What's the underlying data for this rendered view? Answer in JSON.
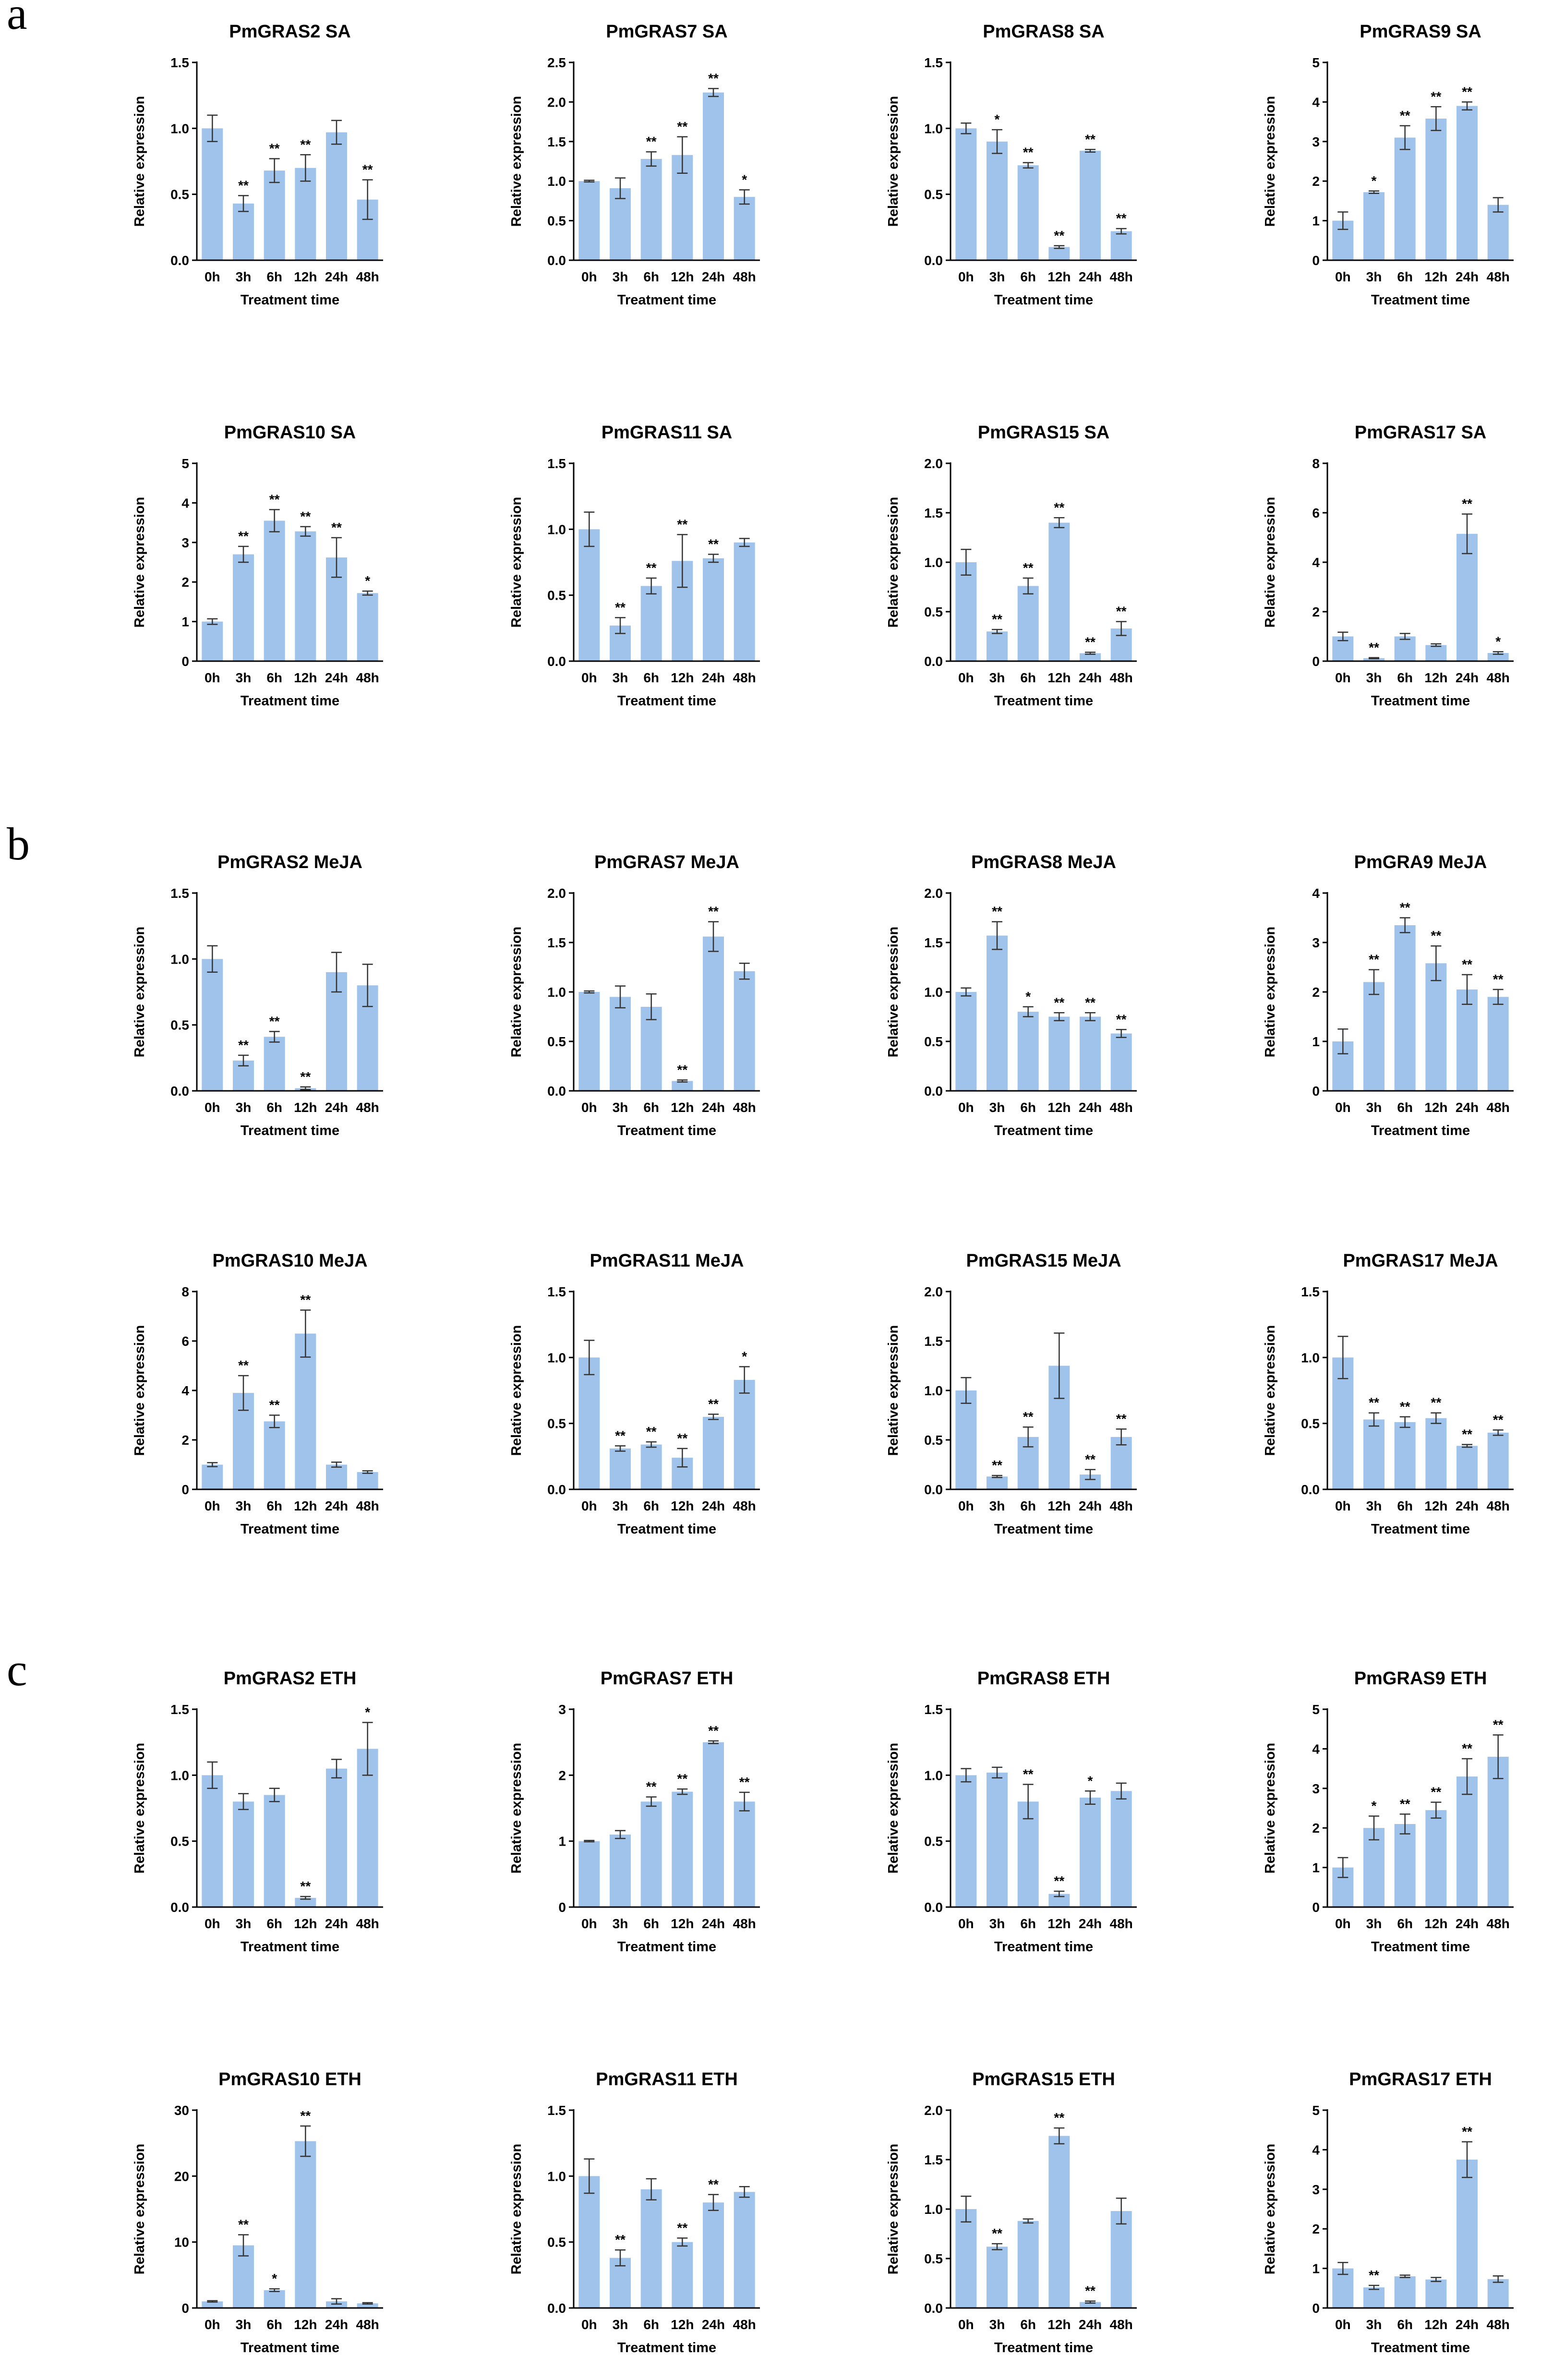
{
  "figure": {
    "panels": [
      {
        "letter": "a",
        "treatment": "SA"
      },
      {
        "letter": "b",
        "treatment": "MeJA"
      },
      {
        "letter": "c",
        "treatment": "ETH"
      }
    ]
  },
  "colors": {
    "bar": "#9fc3ea",
    "axis": "#000000",
    "error": "#333333"
  },
  "chart_data": [
    {
      "type": "bar",
      "title": "PmGRAS2 SA",
      "xlabel": "Treatment time",
      "ylabel": "Relative expression",
      "categories": [
        "0h",
        "3h",
        "6h",
        "12h",
        "24h",
        "48h"
      ],
      "values": [
        1.0,
        0.43,
        0.68,
        0.7,
        0.97,
        0.46
      ],
      "errors": [
        0.1,
        0.06,
        0.09,
        0.1,
        0.09,
        0.15
      ],
      "significance": [
        "",
        "**",
        "**",
        "**",
        "",
        "**"
      ],
      "ylim": [
        0,
        1.5
      ],
      "yticks": [
        "0.0",
        "0.5",
        "1.0",
        "1.5"
      ]
    },
    {
      "type": "bar",
      "title": "PmGRAS7 SA",
      "xlabel": "Treatment time",
      "ylabel": "Relative expression",
      "categories": [
        "0h",
        "3h",
        "6h",
        "12h",
        "24h",
        "48h"
      ],
      "values": [
        1.0,
        0.91,
        1.28,
        1.33,
        2.12,
        0.8
      ],
      "errors": [
        0.01,
        0.13,
        0.09,
        0.23,
        0.05,
        0.09
      ],
      "significance": [
        "",
        "",
        "**",
        "**",
        "**",
        "*"
      ],
      "ylim": [
        0,
        2.5
      ],
      "yticks": [
        "0.0",
        "0.5",
        "1.0",
        "1.5",
        "2.0",
        "2.5"
      ]
    },
    {
      "type": "bar",
      "title": "PmGRAS8 SA",
      "xlabel": "Treatment time",
      "ylabel": "Relative expression",
      "categories": [
        "0h",
        "3h",
        "6h",
        "12h",
        "24h",
        "48h"
      ],
      "values": [
        1.0,
        0.9,
        0.72,
        0.1,
        0.83,
        0.22
      ],
      "errors": [
        0.04,
        0.09,
        0.02,
        0.01,
        0.01,
        0.02
      ],
      "significance": [
        "",
        "*",
        "**",
        "**",
        "**",
        "**"
      ],
      "ylim": [
        0,
        1.5
      ],
      "yticks": [
        "0.0",
        "0.5",
        "1.0",
        "1.5"
      ]
    },
    {
      "type": "bar",
      "title": "PmGRAS9 SA",
      "xlabel": "Treatment time",
      "ylabel": "Relative expression",
      "categories": [
        "0h",
        "3h",
        "6h",
        "12h",
        "24h",
        "48h"
      ],
      "values": [
        1.0,
        1.72,
        3.1,
        3.58,
        3.9,
        1.4
      ],
      "errors": [
        0.22,
        0.03,
        0.3,
        0.3,
        0.1,
        0.18
      ],
      "significance": [
        "",
        "*",
        "**",
        "**",
        "**",
        ""
      ],
      "ylim": [
        0,
        5
      ],
      "yticks": [
        "0",
        "1",
        "2",
        "3",
        "4",
        "5"
      ]
    },
    {
      "type": "bar",
      "title": "PmGRAS10 SA",
      "xlabel": "Treatment time",
      "ylabel": "Relative expression",
      "categories": [
        "0h",
        "3h",
        "6h",
        "12h",
        "24h",
        "48h"
      ],
      "values": [
        1.0,
        2.7,
        3.55,
        3.28,
        2.62,
        1.72
      ],
      "errors": [
        0.07,
        0.2,
        0.28,
        0.12,
        0.5,
        0.05
      ],
      "significance": [
        "",
        "**",
        "**",
        "**",
        "**",
        "*"
      ],
      "ylim": [
        0,
        5
      ],
      "yticks": [
        "0",
        "1",
        "2",
        "3",
        "4",
        "5"
      ]
    },
    {
      "type": "bar",
      "title": "PmGRAS11 SA",
      "xlabel": "Treatment time",
      "ylabel": "Relative expression",
      "categories": [
        "0h",
        "3h",
        "6h",
        "12h",
        "24h",
        "48h"
      ],
      "values": [
        1.0,
        0.27,
        0.57,
        0.76,
        0.78,
        0.9
      ],
      "errors": [
        0.13,
        0.06,
        0.06,
        0.2,
        0.03,
        0.03
      ],
      "significance": [
        "",
        "**",
        "**",
        "**",
        "**",
        ""
      ],
      "ylim": [
        0,
        1.5
      ],
      "yticks": [
        "0.0",
        "0.5",
        "1.0",
        "1.5"
      ]
    },
    {
      "type": "bar",
      "title": "PmGRAS15 SA",
      "xlabel": "Treatment time",
      "ylabel": "Relative expression",
      "categories": [
        "0h",
        "3h",
        "6h",
        "12h",
        "24h",
        "48h"
      ],
      "values": [
        1.0,
        0.3,
        0.76,
        1.4,
        0.08,
        0.33
      ],
      "errors": [
        0.13,
        0.02,
        0.08,
        0.05,
        0.01,
        0.07
      ],
      "significance": [
        "",
        "**",
        "**",
        "**",
        "**",
        "**"
      ],
      "ylim": [
        0,
        2.0
      ],
      "yticks": [
        "0.0",
        "0.5",
        "1.0",
        "1.5",
        "2.0"
      ]
    },
    {
      "type": "bar",
      "title": "PmGRAS17 SA",
      "xlabel": "Treatment time",
      "ylabel": "Relative expression",
      "categories": [
        "0h",
        "3h",
        "6h",
        "12h",
        "24h",
        "48h"
      ],
      "values": [
        1.0,
        0.12,
        1.0,
        0.65,
        5.15,
        0.33
      ],
      "errors": [
        0.17,
        0.02,
        0.12,
        0.05,
        0.8,
        0.05
      ],
      "significance": [
        "",
        "**",
        "",
        "",
        "**",
        "*"
      ],
      "ylim": [
        0,
        8
      ],
      "yticks": [
        "0",
        "2",
        "4",
        "6",
        "8"
      ]
    },
    {
      "type": "bar",
      "title": "PmGRAS2 MeJA",
      "xlabel": "Treatment time",
      "ylabel": "Relative expression",
      "categories": [
        "0h",
        "3h",
        "6h",
        "12h",
        "24h",
        "48h"
      ],
      "values": [
        1.0,
        0.23,
        0.41,
        0.02,
        0.9,
        0.8
      ],
      "errors": [
        0.1,
        0.04,
        0.04,
        0.01,
        0.15,
        0.16
      ],
      "significance": [
        "",
        "**",
        "**",
        "**",
        "",
        ""
      ],
      "ylim": [
        0,
        1.5
      ],
      "yticks": [
        "0.0",
        "0.5",
        "1.0",
        "1.5"
      ]
    },
    {
      "type": "bar",
      "title": "PmGRAS7 MeJA",
      "xlabel": "Treatment time",
      "ylabel": "Relative expression",
      "categories": [
        "0h",
        "3h",
        "6h",
        "12h",
        "24h",
        "48h"
      ],
      "values": [
        1.0,
        0.95,
        0.85,
        0.1,
        1.56,
        1.21
      ],
      "errors": [
        0.01,
        0.11,
        0.13,
        0.01,
        0.15,
        0.08
      ],
      "significance": [
        "",
        "",
        "",
        "**",
        "**",
        ""
      ],
      "ylim": [
        0,
        2.0
      ],
      "yticks": [
        "0.0",
        "0.5",
        "1.0",
        "1.5",
        "2.0"
      ]
    },
    {
      "type": "bar",
      "title": "PmGRAS8 MeJA",
      "xlabel": "Treatment time",
      "ylabel": "Relative expression",
      "categories": [
        "0h",
        "3h",
        "6h",
        "12h",
        "24h",
        "48h"
      ],
      "values": [
        1.0,
        1.57,
        0.8,
        0.75,
        0.75,
        0.58
      ],
      "errors": [
        0.04,
        0.14,
        0.05,
        0.04,
        0.04,
        0.04
      ],
      "significance": [
        "",
        "**",
        "*",
        "**",
        "**",
        "**"
      ],
      "ylim": [
        0,
        2.0
      ],
      "yticks": [
        "0.0",
        "0.5",
        "1.0",
        "1.5",
        "2.0"
      ]
    },
    {
      "type": "bar",
      "title": "PmGRA9 MeJA",
      "xlabel": "Treatment time",
      "ylabel": "Relative expression",
      "categories": [
        "0h",
        "3h",
        "6h",
        "12h",
        "24h",
        "48h"
      ],
      "values": [
        1.0,
        2.2,
        3.35,
        2.58,
        2.05,
        1.9
      ],
      "errors": [
        0.25,
        0.25,
        0.15,
        0.35,
        0.3,
        0.15
      ],
      "significance": [
        "",
        "**",
        "**",
        "**",
        "**",
        "**"
      ],
      "ylim": [
        0,
        4
      ],
      "yticks": [
        "0",
        "1",
        "2",
        "3",
        "4"
      ]
    },
    {
      "type": "bar",
      "title": "PmGRAS10 MeJA",
      "xlabel": "Treatment time",
      "ylabel": "Relative expression",
      "categories": [
        "0h",
        "3h",
        "6h",
        "12h",
        "24h",
        "48h"
      ],
      "values": [
        1.0,
        3.9,
        2.75,
        6.3,
        1.0,
        0.7
      ],
      "errors": [
        0.08,
        0.7,
        0.25,
        0.95,
        0.1,
        0.05
      ],
      "significance": [
        "",
        "**",
        "**",
        "**",
        "",
        ""
      ],
      "ylim": [
        0,
        8
      ],
      "yticks": [
        "0",
        "2",
        "4",
        "6",
        "8"
      ]
    },
    {
      "type": "bar",
      "title": "PmGRAS11 MeJA",
      "xlabel": "Treatment time",
      "ylabel": "Relative expression",
      "categories": [
        "0h",
        "3h",
        "6h",
        "12h",
        "24h",
        "48h"
      ],
      "values": [
        1.0,
        0.31,
        0.34,
        0.24,
        0.55,
        0.83
      ],
      "errors": [
        0.13,
        0.02,
        0.02,
        0.07,
        0.02,
        0.1
      ],
      "significance": [
        "",
        "**",
        "**",
        "**",
        "**",
        "*"
      ],
      "ylim": [
        0,
        1.5
      ],
      "yticks": [
        "0.0",
        "0.5",
        "1.0",
        "1.5"
      ]
    },
    {
      "type": "bar",
      "title": "PmGRAS15 MeJA",
      "xlabel": "Treatment time",
      "ylabel": "Relative expression",
      "categories": [
        "0h",
        "3h",
        "6h",
        "12h",
        "24h",
        "48h"
      ],
      "values": [
        1.0,
        0.13,
        0.53,
        1.25,
        0.15,
        0.53
      ],
      "errors": [
        0.13,
        0.01,
        0.1,
        0.33,
        0.05,
        0.08
      ],
      "significance": [
        "",
        "**",
        "**",
        "",
        "**",
        "**"
      ],
      "ylim": [
        0,
        2.0
      ],
      "yticks": [
        "0.0",
        "0.5",
        "1.0",
        "1.5",
        "2.0"
      ]
    },
    {
      "type": "bar",
      "title": "PmGRAS17 MeJA",
      "xlabel": "Treatment time",
      "ylabel": "Relative expression",
      "categories": [
        "0h",
        "3h",
        "6h",
        "12h",
        "24h",
        "48h"
      ],
      "values": [
        1.0,
        0.53,
        0.51,
        0.54,
        0.33,
        0.43
      ],
      "errors": [
        0.16,
        0.05,
        0.04,
        0.04,
        0.01,
        0.02
      ],
      "significance": [
        "",
        "**",
        "**",
        "**",
        "**",
        "**"
      ],
      "ylim": [
        0,
        1.5
      ],
      "yticks": [
        "0.0",
        "0.5",
        "1.0",
        "1.5"
      ]
    },
    {
      "type": "bar",
      "title": "PmGRAS2 ETH",
      "xlabel": "Treatment time",
      "ylabel": "Relative expression",
      "categories": [
        "0h",
        "3h",
        "6h",
        "12h",
        "24h",
        "48h"
      ],
      "values": [
        1.0,
        0.8,
        0.85,
        0.07,
        1.05,
        1.2
      ],
      "errors": [
        0.1,
        0.06,
        0.05,
        0.01,
        0.07,
        0.2
      ],
      "significance": [
        "",
        "",
        "",
        "**",
        "",
        "*"
      ],
      "ylim": [
        0,
        1.5
      ],
      "yticks": [
        "0.0",
        "0.5",
        "1.0",
        "1.5"
      ]
    },
    {
      "type": "bar",
      "title": "PmGRAS7 ETH",
      "xlabel": "Treatment time",
      "ylabel": "Relative expression",
      "categories": [
        "0h",
        "3h",
        "6h",
        "12h",
        "24h",
        "48h"
      ],
      "values": [
        1.0,
        1.1,
        1.6,
        1.75,
        2.5,
        1.6
      ],
      "errors": [
        0.01,
        0.06,
        0.07,
        0.04,
        0.02,
        0.14
      ],
      "significance": [
        "",
        "",
        "**",
        "**",
        "**",
        "**"
      ],
      "ylim": [
        0,
        3
      ],
      "yticks": [
        "0",
        "1",
        "2",
        "3"
      ]
    },
    {
      "type": "bar",
      "title": "PmGRAS8 ETH",
      "xlabel": "Treatment time",
      "ylabel": "Relative expression",
      "categories": [
        "0h",
        "3h",
        "6h",
        "12h",
        "24h",
        "48h"
      ],
      "values": [
        1.0,
        1.02,
        0.8,
        0.1,
        0.83,
        0.88
      ],
      "errors": [
        0.05,
        0.04,
        0.13,
        0.02,
        0.05,
        0.06
      ],
      "significance": [
        "",
        "",
        "**",
        "**",
        "*",
        ""
      ],
      "ylim": [
        0,
        1.5
      ],
      "yticks": [
        "0.0",
        "0.5",
        "1.0",
        "1.5"
      ]
    },
    {
      "type": "bar",
      "title": "PmGRAS9 ETH",
      "xlabel": "Treatment time",
      "ylabel": "Relative expression",
      "categories": [
        "0h",
        "3h",
        "6h",
        "12h",
        "24h",
        "48h"
      ],
      "values": [
        1.0,
        2.0,
        2.1,
        2.45,
        3.3,
        3.8
      ],
      "errors": [
        0.25,
        0.3,
        0.25,
        0.2,
        0.45,
        0.55
      ],
      "significance": [
        "",
        "*",
        "**",
        "**",
        "**",
        "**"
      ],
      "ylim": [
        0,
        5
      ],
      "yticks": [
        "0",
        "1",
        "2",
        "3",
        "4",
        "5"
      ]
    },
    {
      "type": "bar",
      "title": "PmGRAS10 ETH",
      "xlabel": "Treatment time",
      "ylabel": "Relative expression",
      "categories": [
        "0h",
        "3h",
        "6h",
        "12h",
        "24h",
        "48h"
      ],
      "values": [
        1.0,
        9.5,
        2.7,
        25.3,
        1.0,
        0.7
      ],
      "errors": [
        0.1,
        1.6,
        0.2,
        2.3,
        0.4,
        0.1
      ],
      "significance": [
        "",
        "**",
        "*",
        "**",
        "",
        ""
      ],
      "ylim": [
        0,
        30
      ],
      "yticks": [
        "0",
        "10",
        "20",
        "30"
      ]
    },
    {
      "type": "bar",
      "title": "PmGRAS11 ETH",
      "xlabel": "Treatment time",
      "ylabel": "Relative expression",
      "categories": [
        "0h",
        "3h",
        "6h",
        "12h",
        "24h",
        "48h"
      ],
      "values": [
        1.0,
        0.38,
        0.9,
        0.5,
        0.8,
        0.88
      ],
      "errors": [
        0.13,
        0.06,
        0.08,
        0.03,
        0.06,
        0.04
      ],
      "significance": [
        "",
        "**",
        "",
        "**",
        "**",
        ""
      ],
      "ylim": [
        0,
        1.5
      ],
      "yticks": [
        "0.0",
        "0.5",
        "1.0",
        "1.5"
      ]
    },
    {
      "type": "bar",
      "title": "PmGRAS15 ETH",
      "xlabel": "Treatment time",
      "ylabel": "Relative expression",
      "categories": [
        "0h",
        "3h",
        "6h",
        "12h",
        "24h",
        "48h"
      ],
      "values": [
        1.0,
        0.62,
        0.88,
        1.74,
        0.06,
        0.98
      ],
      "errors": [
        0.13,
        0.03,
        0.02,
        0.08,
        0.01,
        0.13
      ],
      "significance": [
        "",
        "**",
        "",
        "**",
        "**",
        ""
      ],
      "ylim": [
        0,
        2.0
      ],
      "yticks": [
        "0.0",
        "0.5",
        "1.0",
        "1.5",
        "2.0"
      ]
    },
    {
      "type": "bar",
      "title": "PmGRAS17 ETH",
      "xlabel": "Treatment time",
      "ylabel": "Relative expression",
      "categories": [
        "0h",
        "3h",
        "6h",
        "12h",
        "24h",
        "48h"
      ],
      "values": [
        1.0,
        0.52,
        0.8,
        0.72,
        3.75,
        0.73
      ],
      "errors": [
        0.15,
        0.05,
        0.03,
        0.05,
        0.45,
        0.08
      ],
      "significance": [
        "",
        "**",
        "",
        "",
        "**",
        ""
      ],
      "ylim": [
        0,
        5
      ],
      "yticks": [
        "0",
        "1",
        "2",
        "3",
        "4",
        "5"
      ]
    }
  ]
}
